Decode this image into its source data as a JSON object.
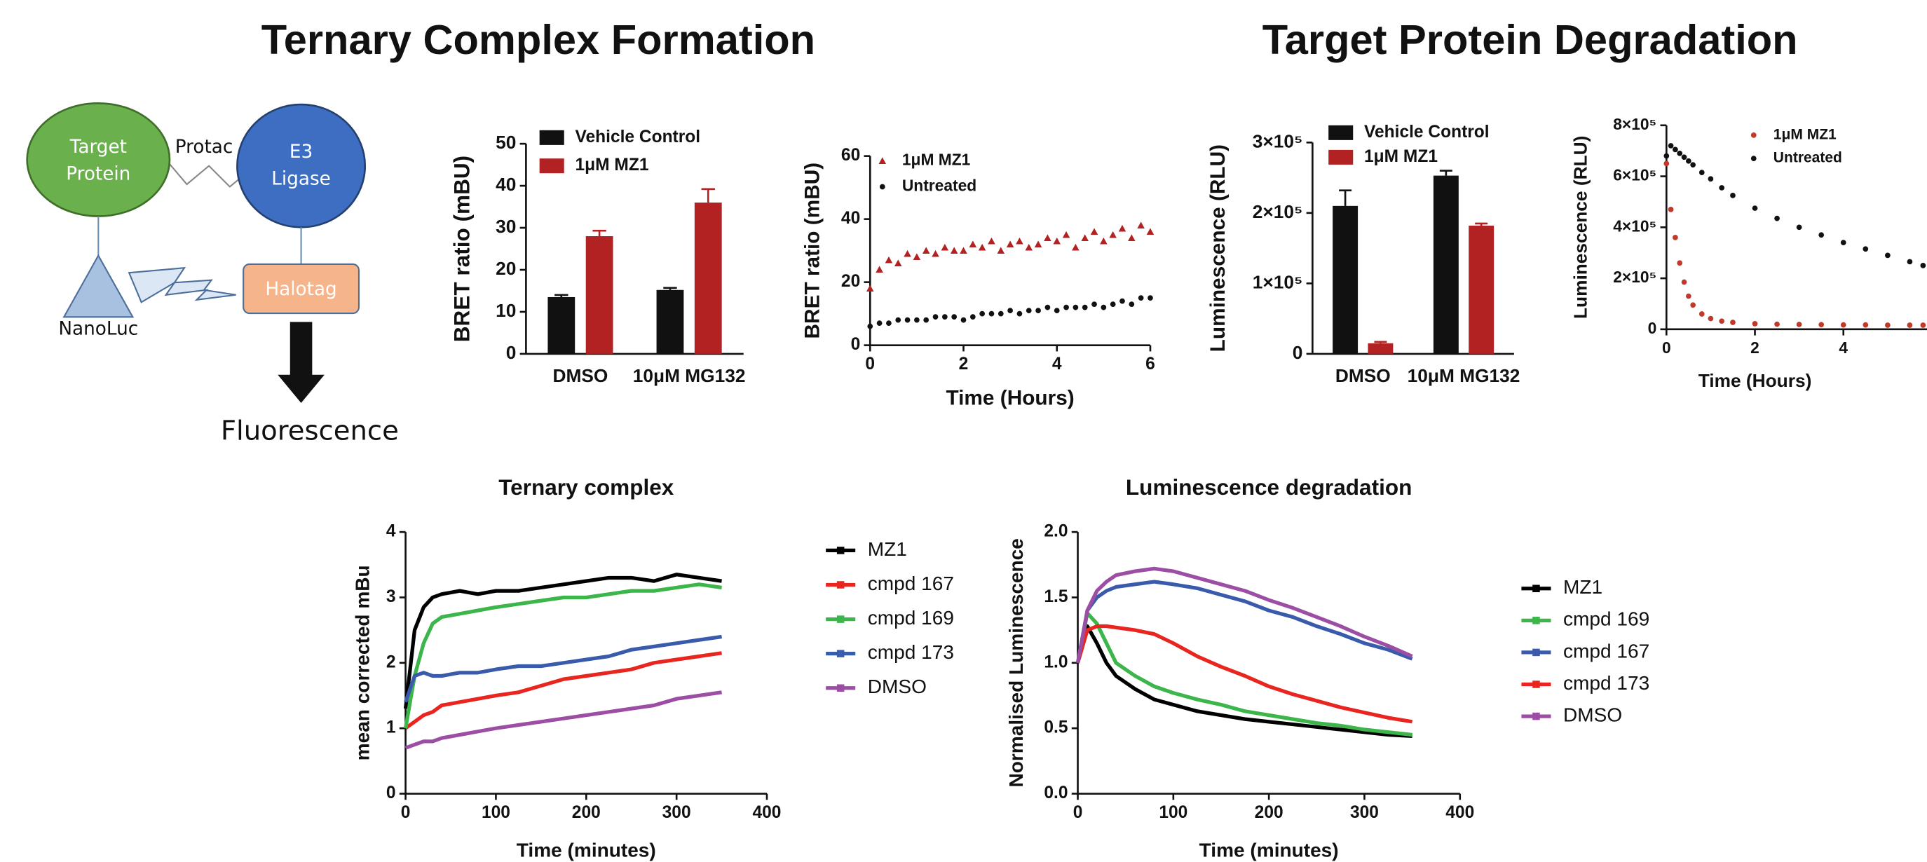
{
  "headings": [
    "Ternary Complex Formation",
    "Target Protein Degradation"
  ],
  "diagram": {
    "target": [
      "Target",
      "Protein"
    ],
    "linker": "Protac",
    "ligase": [
      "E3",
      "Ligase"
    ],
    "tag": "Halotag",
    "donor": "NanoLuc",
    "readout": "Fluorescence"
  },
  "chart_data": [
    {
      "type": "bar",
      "ylabel": "BRET ratio (mBU)",
      "categories": [
        "DMSO",
        "10μM MG132"
      ],
      "series": [
        {
          "name": "Vehicle Control",
          "color": "#111111",
          "values": [
            13.5,
            15.2
          ],
          "errors": [
            0.5,
            0.5
          ]
        },
        {
          "name": "1μM MZ1",
          "color": "#b22222",
          "values": [
            28,
            36
          ],
          "errors": [
            1.3,
            3.2
          ]
        }
      ],
      "ylim": [
        0,
        50
      ],
      "yticks": [
        0,
        10,
        20,
        30,
        40,
        50
      ]
    },
    {
      "type": "scatter",
      "xlabel": "Time (Hours)",
      "ylabel": "BRET ratio (mBU)",
      "x": [
        0,
        0.2,
        0.4,
        0.6,
        0.8,
        1,
        1.2,
        1.4,
        1.6,
        1.8,
        2,
        2.2,
        2.4,
        2.6,
        2.8,
        3,
        3.2,
        3.4,
        3.6,
        3.8,
        4,
        4.2,
        4.4,
        4.6,
        4.8,
        5,
        5.2,
        5.4,
        5.6,
        5.8,
        6
      ],
      "series": [
        {
          "name": "1μM MZ1",
          "color": "#b22222",
          "marker": "triangle",
          "values": [
            18,
            24,
            27,
            26,
            29,
            28,
            30,
            29,
            31,
            30,
            30,
            32,
            31,
            33,
            30,
            32,
            33,
            31,
            32,
            34,
            33,
            35,
            31,
            34,
            36,
            33,
            35,
            37,
            34,
            38,
            36
          ]
        },
        {
          "name": "Untreated",
          "color": "#111111",
          "marker": "circle",
          "values": [
            6,
            7,
            7,
            8,
            8,
            8,
            8,
            9,
            9,
            9,
            8,
            9,
            10,
            10,
            10,
            11,
            10,
            11,
            11,
            12,
            11,
            12,
            12,
            12,
            13,
            12,
            13,
            14,
            13,
            15,
            15
          ]
        }
      ],
      "xlim": [
        0,
        6
      ],
      "xticks": [
        0,
        2,
        4,
        6
      ],
      "ylim": [
        0,
        60
      ],
      "yticks": [
        0,
        20,
        40,
        60
      ]
    },
    {
      "type": "bar",
      "ylabel": "Luminescence (RLU)",
      "categories": [
        "DMSO",
        "10μM MG132"
      ],
      "series": [
        {
          "name": "Vehicle Control",
          "color": "#111111",
          "values": [
            210000,
            253000
          ],
          "errors": [
            22000,
            7000
          ]
        },
        {
          "name": "1μM MZ1",
          "color": "#b22222",
          "values": [
            15000,
            182000
          ],
          "errors": [
            2000,
            3000
          ]
        }
      ],
      "ylim": [
        0,
        300000
      ],
      "yticks": [
        0,
        {
          "value": 100000,
          "label": "1×10⁵"
        },
        {
          "value": 200000,
          "label": "2×10⁵"
        },
        {
          "value": 300000,
          "label": "3×10⁵"
        }
      ]
    },
    {
      "type": "scatter",
      "xlabel": "Time (Hours)",
      "ylabel": "Luminescence (RLU)",
      "x": [
        0,
        0.1,
        0.2,
        0.3,
        0.4,
        0.5,
        0.6,
        0.8,
        1,
        1.25,
        1.5,
        2,
        2.5,
        3,
        3.5,
        4,
        4.5,
        5,
        5.5,
        5.8
      ],
      "series": [
        {
          "name": "1μM MZ1",
          "color": "#c0392b",
          "marker": "circle",
          "values": [
            650000,
            470000,
            360000,
            260000,
            185000,
            130000,
            95000,
            60000,
            42000,
            32000,
            27000,
            22000,
            20000,
            19000,
            18000,
            17000,
            17000,
            16000,
            16000,
            16000
          ]
        },
        {
          "name": "Untreated",
          "color": "#111111",
          "marker": "circle",
          "values": [
            680000,
            720000,
            705000,
            690000,
            675000,
            660000,
            645000,
            615000,
            590000,
            555000,
            525000,
            475000,
            435000,
            400000,
            370000,
            340000,
            315000,
            290000,
            265000,
            250000
          ]
        }
      ],
      "xlim": [
        0,
        6
      ],
      "xticks": [
        0,
        2,
        4
      ],
      "ylim": [
        0,
        800000
      ],
      "yticks": [
        0,
        {
          "value": 200000,
          "label": "2×10⁵"
        },
        {
          "value": 400000,
          "label": "4×10⁵"
        },
        {
          "value": 600000,
          "label": "6×10⁵"
        },
        {
          "value": 800000,
          "label": "8×10⁵"
        }
      ]
    },
    {
      "type": "line",
      "title": "Ternary complex",
      "xlabel": "Time (minutes)",
      "ylabel": "mean corrected mBu",
      "x": [
        0,
        10,
        20,
        30,
        40,
        60,
        80,
        100,
        125,
        150,
        175,
        200,
        225,
        250,
        275,
        300,
        325,
        350
      ],
      "series": [
        {
          "name": "MZ1",
          "color": "#000000",
          "values": [
            1.3,
            2.5,
            2.85,
            3.0,
            3.05,
            3.1,
            3.05,
            3.1,
            3.1,
            3.15,
            3.2,
            3.25,
            3.3,
            3.3,
            3.25,
            3.35,
            3.3,
            3.25
          ]
        },
        {
          "name": "cmpd 167",
          "color": "#e8261f",
          "values": [
            1.0,
            1.1,
            1.2,
            1.25,
            1.35,
            1.4,
            1.45,
            1.5,
            1.55,
            1.65,
            1.75,
            1.8,
            1.85,
            1.9,
            2.0,
            2.05,
            2.1,
            2.15
          ]
        },
        {
          "name": "cmpd 169",
          "color": "#3cb54a",
          "values": [
            1.0,
            1.8,
            2.3,
            2.6,
            2.7,
            2.75,
            2.8,
            2.85,
            2.9,
            2.95,
            3.0,
            3.0,
            3.05,
            3.1,
            3.1,
            3.15,
            3.2,
            3.15
          ]
        },
        {
          "name": "cmpd 173",
          "color": "#3a5bab",
          "values": [
            1.4,
            1.8,
            1.85,
            1.8,
            1.8,
            1.85,
            1.85,
            1.9,
            1.95,
            1.95,
            2.0,
            2.05,
            2.1,
            2.2,
            2.25,
            2.3,
            2.35,
            2.4
          ]
        },
        {
          "name": "DMSO",
          "color": "#9b4ea3",
          "values": [
            0.7,
            0.75,
            0.8,
            0.8,
            0.85,
            0.9,
            0.95,
            1.0,
            1.05,
            1.1,
            1.15,
            1.2,
            1.25,
            1.3,
            1.35,
            1.45,
            1.5,
            1.55
          ]
        }
      ],
      "xlim": [
        0,
        400
      ],
      "xticks": [
        0,
        100,
        200,
        300,
        400
      ],
      "ylim": [
        0,
        4
      ],
      "yticks": [
        0,
        1,
        2,
        3,
        4
      ]
    },
    {
      "type": "line",
      "title": "Luminescence degradation",
      "xlabel": "Time (minutes)",
      "ylabel": "Normalised Luminescence",
      "x": [
        0,
        10,
        20,
        30,
        40,
        60,
        80,
        100,
        125,
        150,
        175,
        200,
        225,
        250,
        275,
        300,
        325,
        350
      ],
      "series": [
        {
          "name": "MZ1",
          "color": "#000000",
          "values": [
            1.0,
            1.28,
            1.15,
            1.0,
            0.9,
            0.8,
            0.72,
            0.68,
            0.63,
            0.6,
            0.57,
            0.55,
            0.53,
            0.51,
            0.49,
            0.47,
            0.45,
            0.44
          ]
        },
        {
          "name": "cmpd 169",
          "color": "#3cb54a",
          "values": [
            1.0,
            1.38,
            1.3,
            1.15,
            1.0,
            0.9,
            0.82,
            0.77,
            0.72,
            0.68,
            0.63,
            0.6,
            0.57,
            0.54,
            0.52,
            0.49,
            0.47,
            0.45
          ]
        },
        {
          "name": "cmpd 167",
          "color": "#3a5bab",
          "values": [
            1.0,
            1.4,
            1.5,
            1.55,
            1.58,
            1.6,
            1.62,
            1.6,
            1.57,
            1.52,
            1.47,
            1.4,
            1.35,
            1.28,
            1.22,
            1.15,
            1.1,
            1.03
          ]
        },
        {
          "name": "cmpd 173",
          "color": "#e8261f",
          "values": [
            1.0,
            1.25,
            1.28,
            1.28,
            1.27,
            1.25,
            1.22,
            1.15,
            1.05,
            0.97,
            0.9,
            0.82,
            0.76,
            0.71,
            0.66,
            0.62,
            0.58,
            0.55
          ]
        },
        {
          "name": "DMSO",
          "color": "#9b4ea3",
          "values": [
            1.0,
            1.4,
            1.55,
            1.62,
            1.67,
            1.7,
            1.72,
            1.7,
            1.65,
            1.6,
            1.55,
            1.48,
            1.42,
            1.35,
            1.28,
            1.2,
            1.13,
            1.05
          ]
        }
      ],
      "xlim": [
        0,
        400
      ],
      "xticks": [
        0,
        100,
        200,
        300,
        400
      ],
      "ylim": [
        0,
        2
      ],
      "yticks": [
        {
          "value": 0,
          "label": "0.0"
        },
        0.5,
        {
          "value": 1,
          "label": "1.0"
        },
        1.5,
        {
          "value": 2,
          "label": "2.0"
        }
      ]
    }
  ]
}
